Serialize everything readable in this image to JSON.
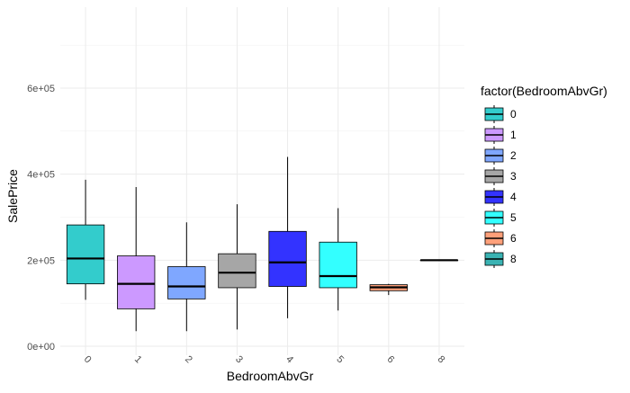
{
  "chart_data": {
    "type": "box",
    "xlabel": "BedroomAbvGr",
    "ylabel": "SalePrice",
    "y_ticks": [
      {
        "value": 0,
        "label": "0e+00"
      },
      {
        "value": 200000,
        "label": "2e+05"
      },
      {
        "value": 400000,
        "label": "4e+05"
      },
      {
        "value": 600000,
        "label": "6e+05"
      }
    ],
    "ylim": [
      0,
      755000
    ],
    "grid": true,
    "legend_title": "factor(BedroomAbvGr)",
    "legend_position": "right",
    "categories": [
      "0",
      "1",
      "2",
      "3",
      "4",
      "5",
      "6",
      "8"
    ],
    "boxes": [
      {
        "category": "0",
        "min": 108000,
        "q1": 145000,
        "median": 204000,
        "q3": 282000,
        "max": 387000,
        "color": "#33CCCC"
      },
      {
        "category": "1",
        "min": 35000,
        "q1": 87000,
        "median": 145000,
        "q3": 210000,
        "max": 370000,
        "color": "#CC99FF"
      },
      {
        "category": "2",
        "min": 35000,
        "q1": 110000,
        "median": 139000,
        "q3": 185000,
        "max": 288000,
        "color": "#7FA7FF"
      },
      {
        "category": "3",
        "min": 39000,
        "q1": 136000,
        "median": 171000,
        "q3": 215000,
        "max": 330000,
        "color": "#A6A6A6"
      },
      {
        "category": "4",
        "min": 65000,
        "q1": 139000,
        "median": 195000,
        "q3": 267000,
        "max": 440000,
        "color": "#3333FF"
      },
      {
        "category": "5",
        "min": 83000,
        "q1": 136000,
        "median": 163000,
        "q3": 242000,
        "max": 321000,
        "color": "#33FFFF"
      },
      {
        "category": "6",
        "min": 119000,
        "q1": 129000,
        "median": 137000,
        "q3": 143000,
        "max": 145000,
        "color": "#FFA07A"
      },
      {
        "category": "8",
        "min": 200000,
        "q1": 200000,
        "median": 200000,
        "q3": 200000,
        "max": 200000,
        "color": "#3AB3B3"
      }
    ]
  }
}
